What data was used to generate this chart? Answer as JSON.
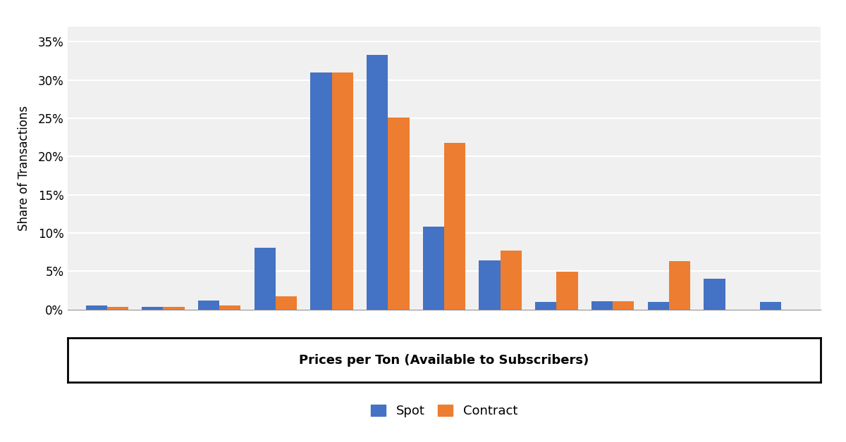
{
  "spot_values": [
    0.5,
    0.3,
    1.2,
    8.1,
    31.0,
    33.3,
    10.8,
    6.4,
    1.0,
    1.1,
    1.0,
    4.0,
    1.0
  ],
  "contract_values": [
    0.3,
    0.3,
    0.5,
    1.7,
    31.0,
    25.1,
    21.8,
    7.7,
    4.9,
    1.1,
    6.3,
    0.0,
    0.0
  ],
  "n_groups": 13,
  "spot_color": "#4472C4",
  "contract_color": "#ED7D31",
  "ylabel": "Share of Transactions",
  "xlabel_text": "Prices per Ton (Available to Subscribers)",
  "legend_spot": "Spot",
  "legend_contract": "Contract",
  "yticks": [
    0,
    5,
    10,
    15,
    20,
    25,
    30,
    35
  ],
  "ylim": [
    0,
    37
  ],
  "bar_width": 0.38,
  "background_color": "#f0f0f0",
  "grid_color": "#ffffff",
  "figure_bg": "#ffffff"
}
